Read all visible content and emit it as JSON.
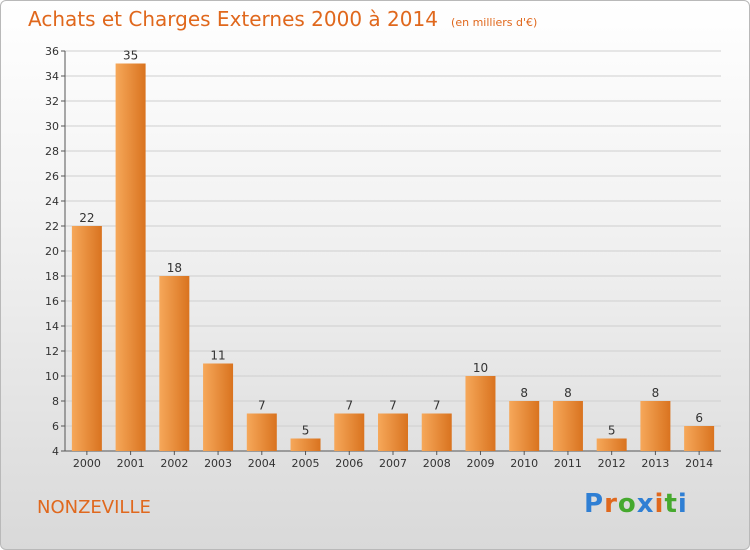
{
  "header": {
    "title": "Achats et Charges Externes 2000 à 2014",
    "unit": "(en milliers d'€)"
  },
  "footer": {
    "commune": "NONZEVILLE",
    "logo_text": "Proxiti"
  },
  "colors": {
    "bar_light": "#f6a85a",
    "bar_dark": "#d9731f",
    "accent": "#e0681d",
    "grid": "#cfcfcf"
  },
  "chart_data": {
    "type": "bar",
    "categories": [
      "2000",
      "2001",
      "2002",
      "2003",
      "2004",
      "2005",
      "2006",
      "2007",
      "2008",
      "2009",
      "2010",
      "2011",
      "2012",
      "2013",
      "2014"
    ],
    "values": [
      22,
      35,
      18,
      11,
      7,
      5,
      7,
      7,
      7,
      10,
      8,
      8,
      5,
      8,
      6
    ],
    "title": "Achats et Charges Externes 2000 à 2014",
    "xlabel": "",
    "ylabel": "",
    "ylim": [
      4,
      36
    ],
    "yticks": [
      4,
      6,
      8,
      10,
      12,
      14,
      16,
      18,
      20,
      22,
      24,
      26,
      28,
      30,
      32,
      34,
      36
    ],
    "grid": true,
    "legend": "none"
  }
}
